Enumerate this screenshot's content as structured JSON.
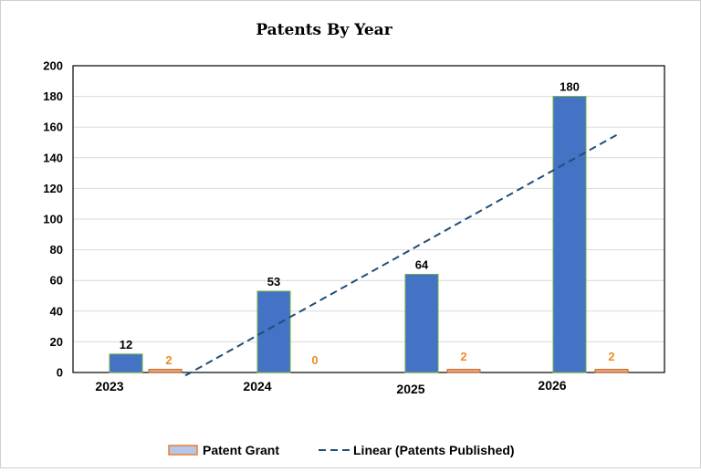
{
  "chart_data": {
    "type": "bar",
    "title": "Patents By Year",
    "categories": [
      "2023",
      "2024",
      "2025",
      "2026"
    ],
    "series": [
      {
        "key": "published",
        "values": [
          12,
          53,
          64,
          180
        ],
        "color": "#4472C4"
      },
      {
        "key": "grant",
        "name": "Patent Grant",
        "values": [
          2,
          0,
          2,
          2
        ],
        "color": "#E9A882"
      }
    ],
    "trendline": {
      "name": "Linear (Patents Published)",
      "style": "dashed",
      "color": "#1F4E79",
      "start": -2,
      "end": 155
    },
    "yticks": [
      "0",
      "20",
      "40",
      "60",
      "80",
      "100",
      "120",
      "140",
      "160",
      "180",
      "200"
    ],
    "ylim": [
      0,
      200
    ],
    "grid": true,
    "legend": "bottom"
  }
}
